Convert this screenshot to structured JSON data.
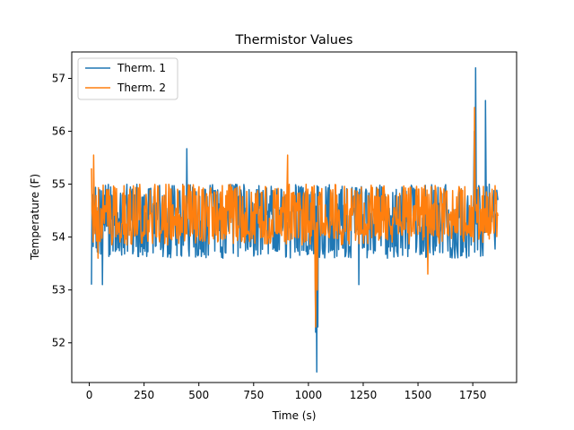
{
  "chart_data": {
    "type": "line",
    "title": "Thermistor Values",
    "xlabel": "Time (s)",
    "ylabel": "Temperature (F)",
    "xlim": [
      -80,
      1950
    ],
    "ylim": [
      51.25,
      57.5
    ],
    "xticks": [
      0,
      250,
      500,
      750,
      1000,
      1250,
      1500,
      1750
    ],
    "yticks": [
      52,
      53,
      54,
      55,
      56,
      57
    ],
    "grid": false,
    "legend_position": "top-left",
    "series": [
      {
        "name": "Therm. 1",
        "color": "#1f77b4",
        "summary": {
          "start_time": 10,
          "end_time": 1865,
          "baseline": 54.35,
          "low_band": 53.6,
          "high_band": 55.0
        },
        "key_points": [
          {
            "x": 10,
            "y": 53.1
          },
          {
            "x": 15,
            "y": 54.8
          },
          {
            "x": 60,
            "y": 53.1
          },
          {
            "x": 445,
            "y": 55.67
          },
          {
            "x": 1033,
            "y": 52.2
          },
          {
            "x": 1038,
            "y": 51.45
          },
          {
            "x": 1043,
            "y": 52.3
          },
          {
            "x": 1230,
            "y": 53.1
          },
          {
            "x": 1757,
            "y": 56.0
          },
          {
            "x": 1763,
            "y": 57.2
          },
          {
            "x": 1808,
            "y": 56.58
          },
          {
            "x": 1865,
            "y": 54.7
          }
        ]
      },
      {
        "name": "Therm. 2",
        "color": "#ff7f0e",
        "summary": {
          "start_time": 10,
          "end_time": 1865,
          "baseline": 54.35,
          "low_band": 53.85,
          "high_band": 55.0
        },
        "key_points": [
          {
            "x": 10,
            "y": 55.3
          },
          {
            "x": 20,
            "y": 55.55
          },
          {
            "x": 40,
            "y": 53.6
          },
          {
            "x": 905,
            "y": 55.55
          },
          {
            "x": 1033,
            "y": 52.3
          },
          {
            "x": 1040,
            "y": 53.0
          },
          {
            "x": 1545,
            "y": 53.3
          },
          {
            "x": 1758,
            "y": 56.45
          },
          {
            "x": 1865,
            "y": 54.4
          }
        ]
      }
    ]
  }
}
